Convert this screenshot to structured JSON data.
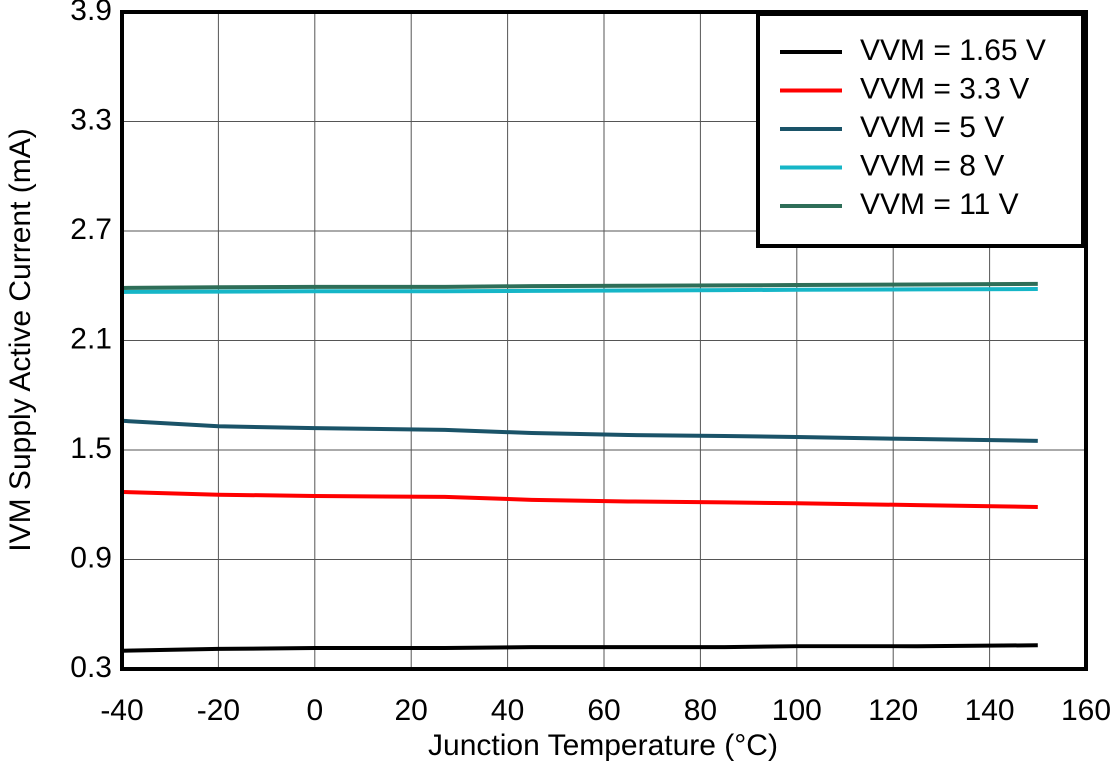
{
  "chart_data": {
    "type": "line",
    "xlabel": "Junction Temperature (°C)",
    "ylabel": "IVM Supply Active Current (mA)",
    "x": [
      -40,
      -20,
      0,
      27,
      45,
      65,
      85,
      100,
      125,
      150
    ],
    "series": [
      {
        "name": "VVM = 1.65 V",
        "color": "#000000",
        "values": [
          0.4,
          0.41,
          0.415,
          0.415,
          0.42,
          0.42,
          0.42,
          0.425,
          0.425,
          0.43
        ]
      },
      {
        "name": "VVM = 3.3 V",
        "color": "#ff0000",
        "values": [
          1.27,
          1.255,
          1.248,
          1.243,
          1.227,
          1.218,
          1.213,
          1.208,
          1.198,
          1.188
        ]
      },
      {
        "name": "VVM = 5 V",
        "color": "#1a5368",
        "values": [
          1.66,
          1.63,
          1.62,
          1.61,
          1.593,
          1.582,
          1.577,
          1.571,
          1.56,
          1.55
        ]
      },
      {
        "name": "VVM = 8 V",
        "color": "#16b6c7",
        "values": [
          2.366,
          2.368,
          2.37,
          2.37,
          2.372,
          2.374,
          2.376,
          2.378,
          2.38,
          2.382
        ]
      },
      {
        "name": "VVM = 11 V",
        "color": "#2e6e58",
        "values": [
          2.388,
          2.392,
          2.394,
          2.394,
          2.398,
          2.4,
          2.402,
          2.404,
          2.407,
          2.41
        ]
      }
    ],
    "xlim": [
      -40,
      160
    ],
    "xticks": [
      -40,
      -20,
      0,
      20,
      40,
      60,
      80,
      100,
      120,
      140,
      160
    ],
    "ylim": [
      0.3,
      3.9
    ],
    "yticks": [
      0.3,
      0.9,
      1.5,
      2.1,
      2.7,
      3.3,
      3.9
    ],
    "grid": true,
    "legend": "upper right"
  }
}
